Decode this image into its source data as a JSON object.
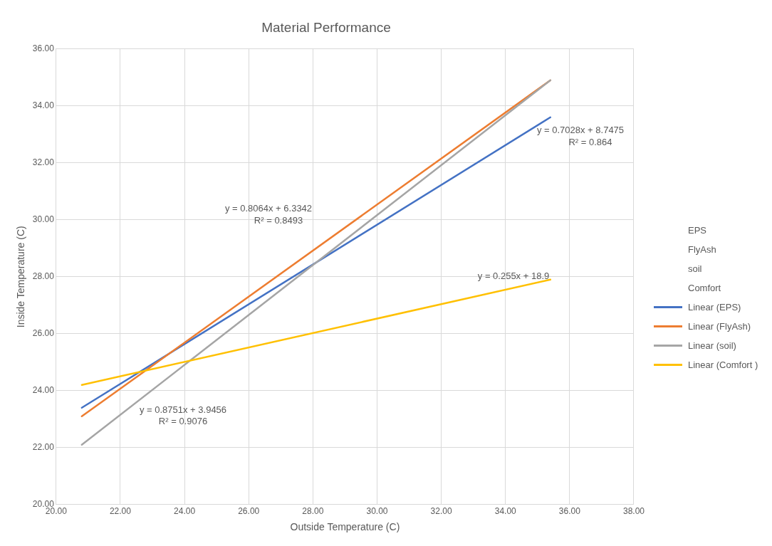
{
  "chart_data": {
    "type": "line",
    "title": "Material Performance",
    "xlabel": "Outside Temperature (C)",
    "ylabel": "Inside Temperature (C)",
    "xlim": [
      20,
      38
    ],
    "xticks": [
      {
        "value": 20,
        "label": "20.00"
      },
      {
        "value": 22,
        "label": "22.00"
      },
      {
        "value": 24,
        "label": "24.00"
      },
      {
        "value": 26,
        "label": "26.00"
      },
      {
        "value": 28,
        "label": "28.00"
      },
      {
        "value": 30,
        "label": "30.00"
      },
      {
        "value": 32,
        "label": "32.00"
      },
      {
        "value": 34,
        "label": "34.00"
      },
      {
        "value": 36,
        "label": "36.00"
      },
      {
        "value": 38,
        "label": "38.00"
      }
    ],
    "ylim": [
      20,
      36
    ],
    "yticks": [
      {
        "value": 20,
        "label": "20.00"
      },
      {
        "value": 22,
        "label": "22.00"
      },
      {
        "value": 24,
        "label": "24.00"
      },
      {
        "value": 26,
        "label": "26.00"
      },
      {
        "value": 28,
        "label": "28.00"
      },
      {
        "value": 30,
        "label": "30.00"
      },
      {
        "value": 32,
        "label": "32.00"
      },
      {
        "value": 34,
        "label": "34.00"
      },
      {
        "value": 36,
        "label": "36.00"
      }
    ],
    "x": [
      20.8,
      35.4
    ],
    "grid": true,
    "legend": "right",
    "marker": "none",
    "line_style": "solid",
    "series": [
      {
        "name": "EPS",
        "values": [
          null,
          null
        ]
      },
      {
        "name": "FlyAsh",
        "values": [
          null,
          null
        ]
      },
      {
        "name": "soil",
        "values": [
          null,
          null
        ]
      },
      {
        "name": "Comfort",
        "values": [
          null,
          null
        ]
      },
      {
        "name": "Linear (EPS)",
        "color": "#4472c4",
        "values": [
          23.4,
          33.6
        ]
      },
      {
        "name": "Linear (FlyAsh)",
        "color": "#ed7d31",
        "values": [
          23.1,
          34.9
        ]
      },
      {
        "name": "Linear (soil)",
        "color": "#a5a5a5",
        "values": [
          22.1,
          34.9
        ]
      },
      {
        "name": "Linear (Comfort )",
        "color": "#ffc000",
        "values": [
          24.2,
          27.9
        ]
      }
    ],
    "annotations": [
      "y = 0.7028x + 8.7475",
      "R² = 0.864",
      "y = 0.8064x + 6.3342",
      "R² = 0.8493",
      "y = 0.8751x + 3.9456",
      "R² = 0.9076",
      "y = 0.255x + 18.9"
    ]
  }
}
